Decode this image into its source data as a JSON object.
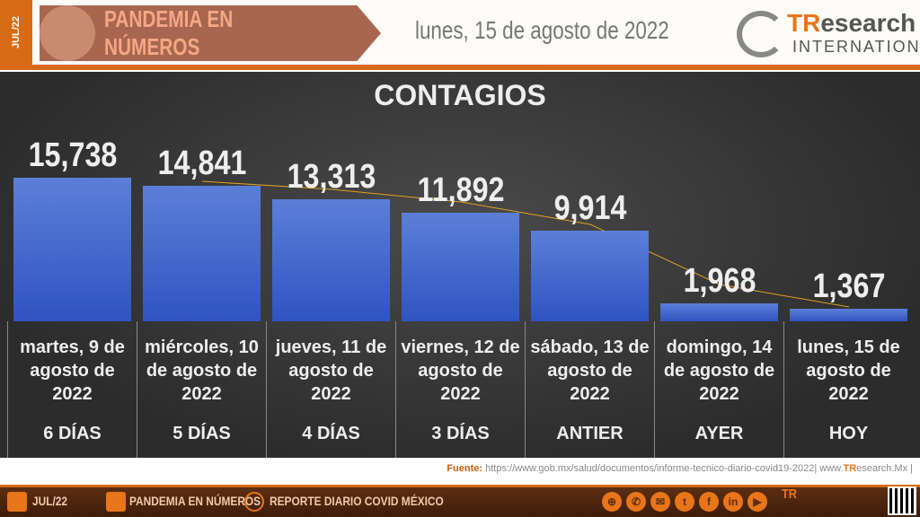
{
  "header": {
    "side_label": "JUL/22",
    "banner_title": "PANDEMIA EN NÚMEROS",
    "date": "lunes, 15 de agosto de 2022",
    "logo": {
      "tr": "TR",
      "esearch": "esearch",
      "international": "INTERNATIONAL"
    }
  },
  "chart_data": {
    "type": "bar",
    "title": "CONTAGIOS",
    "categories": [
      "martes, 9 de agosto de 2022",
      "miércoles, 10 de agosto de 2022",
      "jueves, 11 de agosto de 2022",
      "viernes, 12 de agosto de 2022",
      "sábado, 13 de agosto de 2022",
      "domingo, 14 de agosto de 2022",
      "lunes, 15 de agosto de 2022"
    ],
    "period_labels": [
      "6 DÍAS",
      "5 DÍAS",
      "4 DÍAS",
      "3 DÍAS",
      "ANTIER",
      "AYER",
      "HOY"
    ],
    "values": [
      15738,
      14841,
      13313,
      11892,
      9914,
      1968,
      1367
    ],
    "value_labels": [
      "15,738",
      "14,841",
      "13,313",
      "11,892",
      "9,914",
      "1,968",
      "1,367"
    ],
    "trendline": true,
    "bar_color": "#3f66cc",
    "trend_color": "#e0a020"
  },
  "source": {
    "label": "Fuente:",
    "text": "https://www.gob.mx/salud/documentos/informe-tecnico-diario-covid19-2022| www.",
    "brand_tr": "TR",
    "brand_rest": "esearch.Mx |"
  },
  "footer": {
    "items": [
      "JUL/22",
      "PANDEMIA EN NÚMEROS",
      "REPORTE DIARIO COVID MÉXICO"
    ],
    "social_icons": [
      "globe-icon",
      "phone-icon",
      "mail-icon",
      "twitter-icon",
      "facebook-icon",
      "linkedin-icon",
      "youtube-icon"
    ]
  }
}
